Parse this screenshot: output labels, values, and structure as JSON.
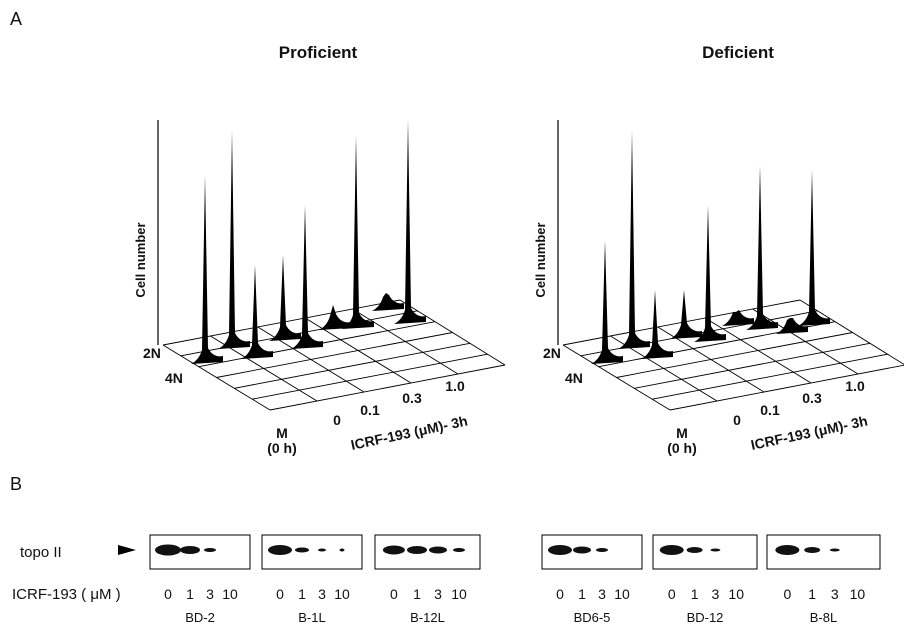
{
  "panel_a": {
    "label": "A",
    "plots": [
      {
        "title": "Proficient",
        "y_axis_label": "Cell number",
        "depth_labels": [
          "2N",
          "4N"
        ],
        "time_label": [
          "M",
          "(0 h)"
        ],
        "concentrations": [
          "0",
          "0.1",
          "0.3",
          "1.0"
        ],
        "x_axis_label": "ICRF-193 (μM)- 3h"
      },
      {
        "title": "Deficient",
        "y_axis_label": "Cell number",
        "depth_labels": [
          "2N",
          "4N"
        ],
        "time_label": [
          "M",
          "(0 h)"
        ],
        "concentrations": [
          "0",
          "0.1",
          "0.3",
          "1.0"
        ],
        "x_axis_label": "ICRF-193 (μM)- 3h"
      }
    ]
  },
  "panel_b": {
    "label": "B",
    "protein_label": "topo II",
    "treatment_label": "ICRF-193 ( μM )",
    "blots": [
      {
        "name": "BD-2",
        "lanes": [
          0,
          1,
          3,
          10
        ]
      },
      {
        "name": "B-1L",
        "lanes": [
          0,
          1,
          3,
          10
        ]
      },
      {
        "name": "B-12L",
        "lanes": [
          0,
          1,
          3,
          10
        ]
      },
      {
        "name": "BD6-5",
        "lanes": [
          0,
          1,
          3,
          10
        ]
      },
      {
        "name": "BD-12",
        "lanes": [
          0,
          1,
          3,
          10
        ]
      },
      {
        "name": "B-8L",
        "lanes": [
          0,
          1,
          3,
          10
        ]
      }
    ]
  }
}
